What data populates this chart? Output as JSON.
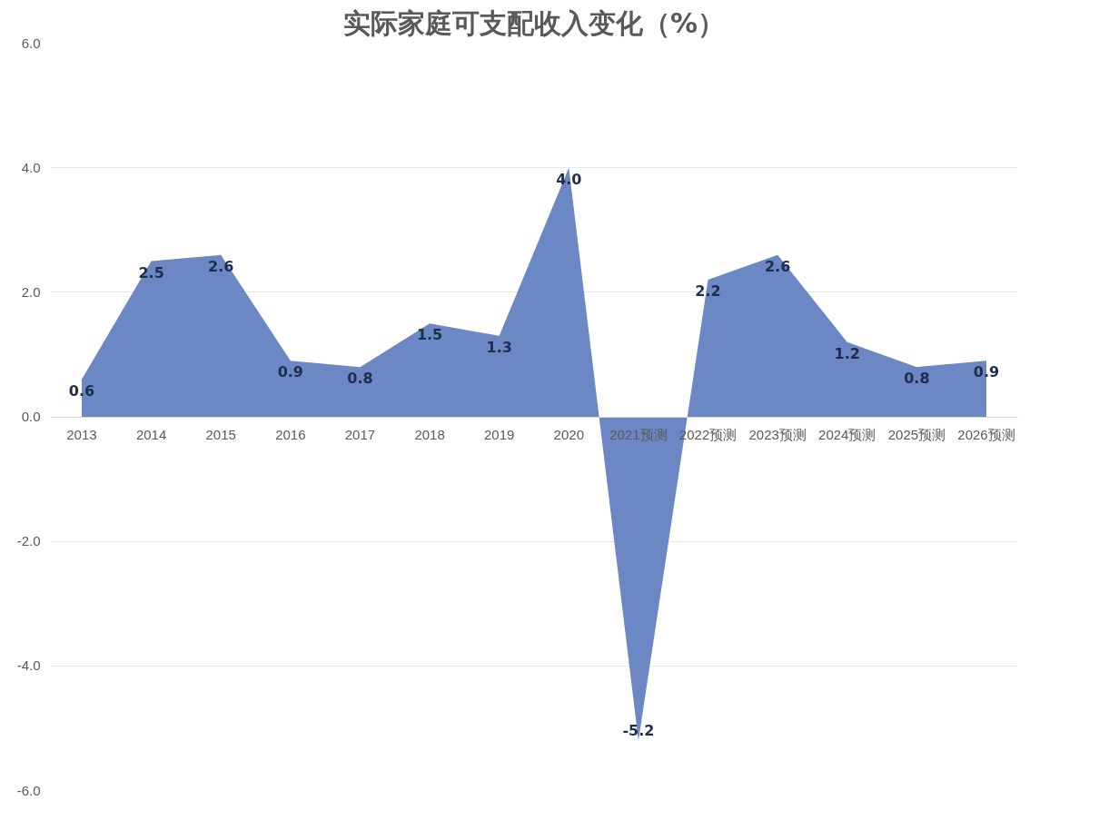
{
  "chart_data": {
    "type": "area",
    "title": "实际家庭可支配收入变化（%）",
    "categories": [
      "2013",
      "2014",
      "2015",
      "2016",
      "2017",
      "2018",
      "2019",
      "2020",
      "2021预测",
      "2022预测",
      "2023预测",
      "2024预测",
      "2025预测",
      "2026预测"
    ],
    "values": [
      0.6,
      2.5,
      2.6,
      0.9,
      0.8,
      1.5,
      1.3,
      4.0,
      -5.2,
      2.2,
      2.6,
      1.2,
      0.8,
      0.9
    ],
    "value_labels": [
      "0.6",
      "2.5",
      "2.6",
      "0.9",
      "0.8",
      "1.5",
      "1.3",
      "4.0",
      "-5.2",
      "2.2",
      "2.6",
      "1.2",
      "0.8",
      "0.9"
    ],
    "color": "#6b88c4",
    "ylim": [
      -6,
      6
    ],
    "yticks": [
      {
        "value": -6,
        "label": "-6.0"
      },
      {
        "value": -4,
        "label": "-4.0"
      },
      {
        "value": -2,
        "label": "-2.0"
      },
      {
        "value": 0,
        "label": "0.0"
      },
      {
        "value": 2,
        "label": "2.0"
      },
      {
        "value": 4,
        "label": "4.0"
      },
      {
        "value": 6,
        "label": "6.0"
      }
    ],
    "grid": "y"
  }
}
